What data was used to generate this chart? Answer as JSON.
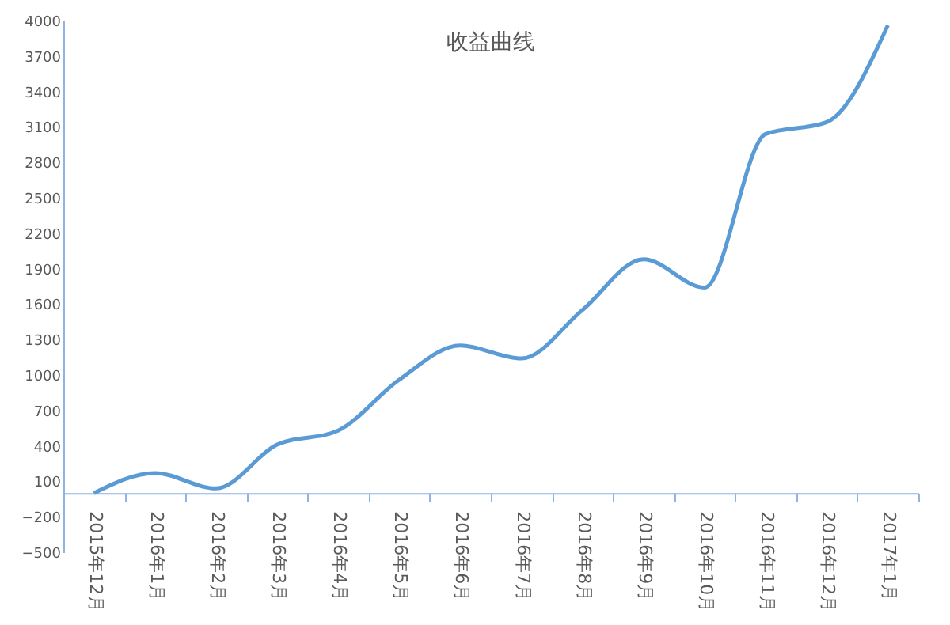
{
  "chart_data": {
    "type": "line",
    "title": "收益曲线",
    "categories": [
      "2015年12月",
      "2016年1月",
      "2016年2月",
      "2016年3月",
      "2016年4月",
      "2016年5月",
      "2016年6月",
      "2016年7月",
      "2016年8月",
      "2016年9月",
      "2016年10月",
      "2016年11月",
      "2016年12月",
      "2017年1月"
    ],
    "series": [
      {
        "color": "#5b9bd5",
        "values": [
          0,
          170,
          40,
          410,
          530,
          960,
          1250,
          1140,
          1550,
          1980,
          1740,
          3040,
          3140,
          3960
        ]
      }
    ],
    "ylim": [
      -500,
      4000
    ],
    "yticks": [
      -500,
      -200,
      100,
      400,
      700,
      1000,
      1300,
      1600,
      1900,
      2200,
      2500,
      2800,
      3100,
      3400,
      3700,
      4000
    ],
    "grid": false,
    "legend": false,
    "marker": "none",
    "line_style": "solid"
  }
}
